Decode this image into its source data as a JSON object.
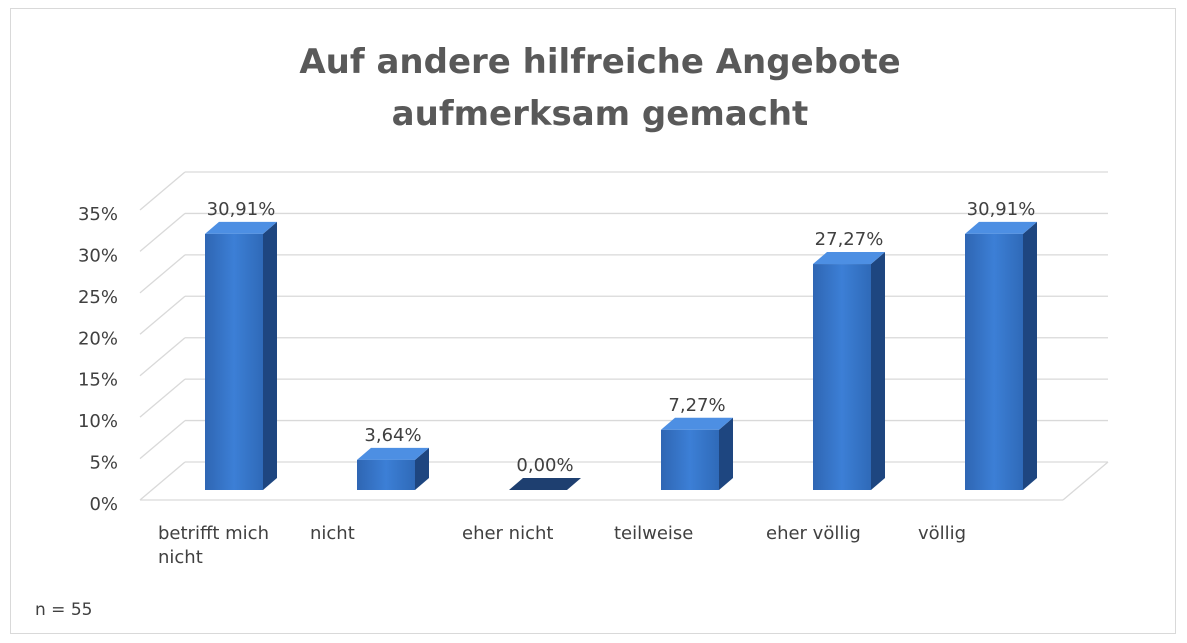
{
  "chart_data": {
    "type": "bar3d",
    "title": "Auf andere hilfreiche Angebote aufmerksam gemacht",
    "categories": [
      "betrifft mich nicht",
      "nicht",
      "eher nicht",
      "teilweise",
      "eher völlig",
      "völlig"
    ],
    "values": [
      30.91,
      3.64,
      0,
      7.27,
      27.27,
      30.91
    ],
    "value_labels": [
      "30,91%",
      "3,64%",
      "0,00%",
      "7,27%",
      "27,27%",
      "30,91%"
    ],
    "color": "#3a78cc",
    "ylim": [
      0,
      35
    ],
    "yticks": [
      {
        "value": 0,
        "label": "0%"
      },
      {
        "value": 5,
        "label": "5%"
      },
      {
        "value": 10,
        "label": "10%"
      },
      {
        "value": 15,
        "label": "15%"
      },
      {
        "value": 20,
        "label": "20%"
      },
      {
        "value": 25,
        "label": "25%"
      },
      {
        "value": 30,
        "label": "30%"
      },
      {
        "value": 35,
        "label": "35%"
      }
    ],
    "grid": true,
    "annotation": "n = 55"
  }
}
